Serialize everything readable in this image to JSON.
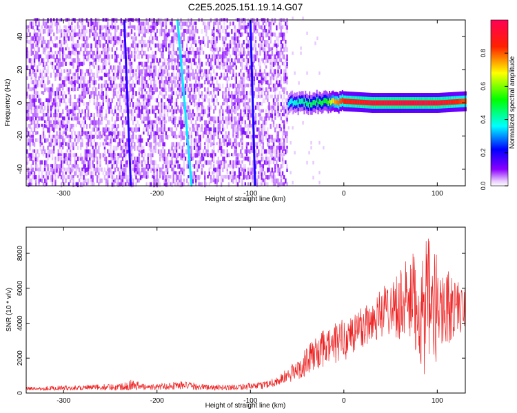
{
  "title": "C2E5.2025.151.19.14.G07",
  "chart_data": [
    {
      "type": "heatmap",
      "xlabel": "Height of straight line (km)",
      "ylabel": "Frequency (Hz)",
      "xlim": [
        -340,
        130
      ],
      "ylim": [
        -50,
        50
      ],
      "x_ticks": [
        -300,
        -200,
        -100,
        0,
        100
      ],
      "y_ticks": [
        -40,
        -20,
        0,
        20,
        40
      ],
      "colorbar": {
        "label": "Normalized spectral amplitude",
        "range": [
          0,
          1
        ],
        "ticks": [
          0.0,
          0.2,
          0.4,
          0.6,
          0.8
        ],
        "tick_labels": [
          "0.0",
          "0.2",
          "0.4",
          "0.6",
          "0.8"
        ]
      },
      "noise_region_x": [
        -340,
        -60
      ],
      "signal": [
        {
          "x": -60,
          "y": 0,
          "amp": 0.35
        },
        {
          "x": -40,
          "y": 0,
          "amp": 0.45
        },
        {
          "x": -20,
          "y": 1,
          "amp": 0.5
        },
        {
          "x": -10,
          "y": 1,
          "amp": 0.75
        },
        {
          "x": 0,
          "y": 1,
          "amp": 0.85
        },
        {
          "x": 30,
          "y": 0,
          "amp": 0.92
        },
        {
          "x": 60,
          "y": 0,
          "amp": 0.95
        },
        {
          "x": 100,
          "y": 0,
          "amp": 0.93
        },
        {
          "x": 130,
          "y": 1,
          "amp": 0.8
        }
      ],
      "streaks": [
        {
          "x_top": -178,
          "x_bottom": -163,
          "amp": 0.35
        },
        {
          "x_top": -235,
          "x_bottom": -228,
          "amp": 0.18
        },
        {
          "x_top": -100,
          "x_bottom": -95,
          "amp": 0.2
        }
      ]
    },
    {
      "type": "line",
      "xlabel": "Height of straight line (km)",
      "ylabel": "SNR (10 * v/v)",
      "xlim": [
        -340,
        130
      ],
      "ylim": [
        0,
        9500
      ],
      "x_ticks": [
        -300,
        -200,
        -100,
        0,
        100
      ],
      "y_ticks": [
        0,
        2000,
        4000,
        6000,
        8000
      ],
      "series": [
        {
          "color": "#ee2222",
          "envelope": [
            {
              "x": -340,
              "mean": 250,
              "amp": 100
            },
            {
              "x": -240,
              "mean": 350,
              "amp": 200
            },
            {
              "x": -230,
              "mean": 500,
              "amp": 350
            },
            {
              "x": -210,
              "mean": 320,
              "amp": 150
            },
            {
              "x": -175,
              "mean": 450,
              "amp": 250
            },
            {
              "x": -140,
              "mean": 300,
              "amp": 150
            },
            {
              "x": -90,
              "mean": 400,
              "amp": 200
            },
            {
              "x": -70,
              "mean": 700,
              "amp": 300
            },
            {
              "x": -50,
              "mean": 1300,
              "amp": 600
            },
            {
              "x": -30,
              "mean": 2300,
              "amp": 1000
            },
            {
              "x": -10,
              "mean": 2800,
              "amp": 1200
            },
            {
              "x": 10,
              "mean": 3400,
              "amp": 1300
            },
            {
              "x": 30,
              "mean": 4200,
              "amp": 1400
            },
            {
              "x": 50,
              "mean": 5000,
              "amp": 1600
            },
            {
              "x": 70,
              "mean": 5200,
              "amp": 2600
            },
            {
              "x": 90,
              "mean": 4700,
              "amp": 4200
            },
            {
              "x": 105,
              "mean": 5000,
              "amp": 2500
            },
            {
              "x": 130,
              "mean": 4800,
              "amp": 1200
            }
          ]
        }
      ]
    }
  ]
}
